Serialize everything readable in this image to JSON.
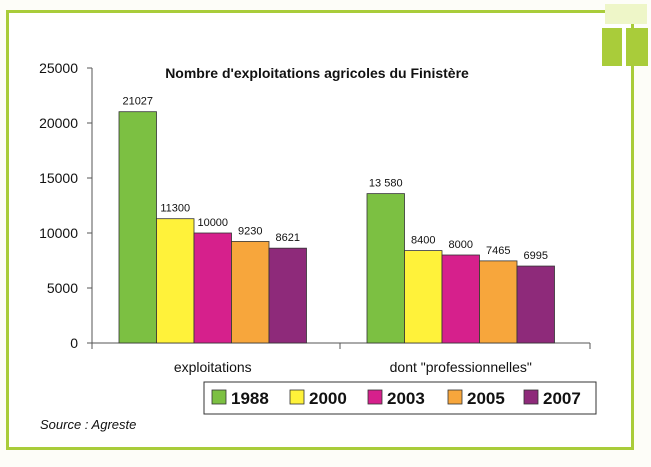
{
  "chart_data": {
    "type": "bar",
    "title": "Nombre d'exploitations agricoles du Finistère",
    "categories": [
      "exploitations",
      "dont \"professionnelles\""
    ],
    "series": [
      {
        "name": "1988",
        "color": "#7cc042",
        "values": [
          21027,
          13580
        ],
        "labels": [
          "21027",
          "13 580"
        ]
      },
      {
        "name": "2000",
        "color": "#fff23a",
        "values": [
          11300,
          8400
        ],
        "labels": [
          "11300",
          "8400"
        ]
      },
      {
        "name": "2003",
        "color": "#d6208c",
        "values": [
          10000,
          8000
        ],
        "labels": [
          "10000",
          "8000"
        ]
      },
      {
        "name": "2005",
        "color": "#f7a63c",
        "values": [
          9230,
          7465
        ],
        "labels": [
          "9230",
          "7465"
        ]
      },
      {
        "name": "2007",
        "color": "#8e2a7a",
        "values": [
          8621,
          6995
        ],
        "labels": [
          "8621",
          "6995"
        ]
      }
    ],
    "yticks": [
      0,
      5000,
      10000,
      15000,
      20000,
      25000
    ],
    "ylim": [
      0,
      25000
    ],
    "legend_position": "bottom"
  },
  "source_text": "Source :  Agreste"
}
